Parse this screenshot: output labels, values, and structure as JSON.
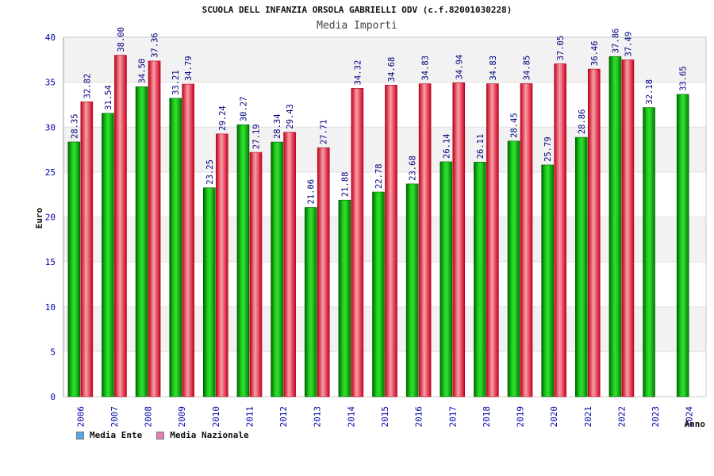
{
  "chart_data": {
    "type": "bar",
    "title": "SCUOLA DELL INFANZIA ORSOLA GABRIELLI ODV (c.f.82001030228)",
    "subtitle": "Media Importi",
    "xlabel": "Anno",
    "ylabel": "Euro",
    "ylim": [
      0,
      40
    ],
    "yticks": [
      "0",
      "5",
      "10",
      "15",
      "20",
      "25",
      "30",
      "35",
      "40"
    ],
    "categories": [
      "2006",
      "2007",
      "2008",
      "2009",
      "2010",
      "2011",
      "2012",
      "2013",
      "2014",
      "2015",
      "2016",
      "2017",
      "2018",
      "2019",
      "2020",
      "2021",
      "2022",
      "2023",
      "2024"
    ],
    "series": [
      {
        "name": "Media Ente",
        "color": "#00b000",
        "legend_color": "#5aa8e8",
        "values": [
          28.35,
          31.54,
          34.5,
          33.21,
          23.25,
          30.27,
          28.34,
          21.06,
          21.88,
          22.78,
          23.68,
          26.14,
          26.11,
          28.45,
          25.79,
          28.86,
          37.86,
          32.18,
          33.65
        ],
        "labels": [
          "28.35",
          "31.54",
          "34.50",
          "33.21",
          "23.25",
          "30.27",
          "28.34",
          "21.06",
          "21.88",
          "22.78",
          "23.68",
          "26.14",
          "26.11",
          "28.45",
          "25.79",
          "28.86",
          "37.86",
          "32.18",
          "33.65"
        ]
      },
      {
        "name": "Media Nazionale",
        "color": "#e83040",
        "legend_color": "#e080b0",
        "values": [
          32.82,
          38.0,
          37.36,
          34.79,
          29.24,
          27.19,
          29.43,
          27.71,
          34.32,
          34.68,
          34.83,
          34.94,
          34.83,
          34.85,
          37.05,
          36.46,
          37.49,
          null,
          null
        ],
        "labels": [
          "32.82",
          "38.00",
          "37.36",
          "34.79",
          "29.24",
          "27.19",
          "29.43",
          "27.71",
          "34.32",
          "34.68",
          "34.83",
          "34.94",
          "34.83",
          "34.85",
          "37.05",
          "36.46",
          "37.49",
          null,
          null
        ]
      }
    ],
    "grid": true,
    "legend_position": "bottom-left"
  }
}
